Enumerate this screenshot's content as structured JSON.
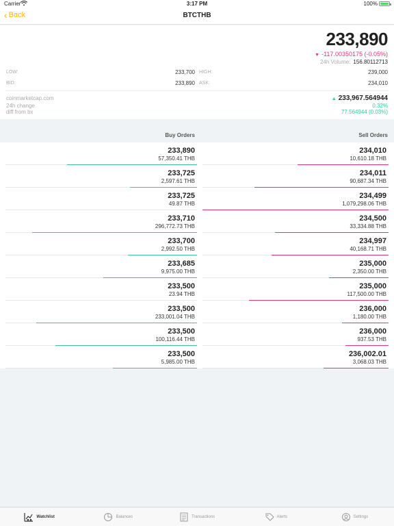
{
  "status": {
    "carrier": "Carrier",
    "time": "3:17 PM",
    "battery": "100%"
  },
  "nav": {
    "back_label": "Back",
    "title": "BTCTHB"
  },
  "ticker": {
    "price": "233,890",
    "change": "-117.00350175 (-0.05%)",
    "volume_label": "24h Volume:",
    "volume": "156.80112713",
    "low_label": "LOW:",
    "low": "233,700",
    "high_label": "HIGH:",
    "high": "239,000",
    "bid_label": "BID:",
    "bid": "233,890",
    "ask_label": "ASK:",
    "ask": "234,010"
  },
  "cmc": {
    "source": "coinmarketcap.com",
    "change_label": "24h change",
    "diff_label": "diff from bx",
    "price": "233,967.564944",
    "change": "0.32%",
    "diff": "77.564944 (0.03%)"
  },
  "orders": {
    "buy_header": "Buy Orders",
    "sell_header": "Sell Orders",
    "buy": [
      {
        "price": "233,890",
        "amount": "57,350.41 THB",
        "depth": 0.68
      },
      {
        "price": "233,725",
        "amount": "2,597.61 THB",
        "depth": 0.35
      },
      {
        "price": "233,725",
        "amount": "49.87 THB",
        "depth": 0.0
      },
      {
        "price": "233,710",
        "amount": "296,772.73 THB",
        "depth": 0.86
      },
      {
        "price": "233,700",
        "amount": "2,992.50 THB",
        "depth": 0.36
      },
      {
        "price": "233,685",
        "amount": "9,975.00 THB",
        "depth": 0.49
      },
      {
        "price": "233,500",
        "amount": "23.94 THB",
        "depth": 0.0
      },
      {
        "price": "233,500",
        "amount": "233,001.04 THB",
        "depth": 0.84
      },
      {
        "price": "233,500",
        "amount": "100,116.44 THB",
        "depth": 0.74
      },
      {
        "price": "233,500",
        "amount": "5,985.00 THB",
        "depth": 0.44
      }
    ],
    "sell": [
      {
        "price": "234,010",
        "amount": "10,610.18 THB",
        "depth": 0.49
      },
      {
        "price": "234,011",
        "amount": "90,687.34 THB",
        "depth": 0.72
      },
      {
        "price": "234,499",
        "amount": "1,079,298.06 THB",
        "depth": 1.0
      },
      {
        "price": "234,500",
        "amount": "33,334.88 THB",
        "depth": 0.61
      },
      {
        "price": "234,997",
        "amount": "40,168.71 THB",
        "depth": 0.63
      },
      {
        "price": "235,000",
        "amount": "2,350.00 THB",
        "depth": 0.32
      },
      {
        "price": "235,000",
        "amount": "117,500.00 THB",
        "depth": 0.75
      },
      {
        "price": "236,000",
        "amount": "1,180.00 THB",
        "depth": 0.25
      },
      {
        "price": "236,000",
        "amount": "937.53 THB",
        "depth": 0.23
      },
      {
        "price": "236,002.01",
        "amount": "3,068.03 THB",
        "depth": 0.35
      }
    ]
  },
  "tabs": [
    {
      "label": "Watchlist",
      "icon": "watchlist-icon",
      "active": true
    },
    {
      "label": "Balances",
      "icon": "pie-chart-icon",
      "active": false
    },
    {
      "label": "Transactions",
      "icon": "document-icon",
      "active": false
    },
    {
      "label": "Alerts",
      "icon": "alert-tag-icon",
      "active": false
    },
    {
      "label": "Settings",
      "icon": "settings-icon",
      "active": false
    }
  ],
  "colors": {
    "accent": "#f6b800",
    "buy": "#3cc39d",
    "sell": "#e8337a"
  }
}
